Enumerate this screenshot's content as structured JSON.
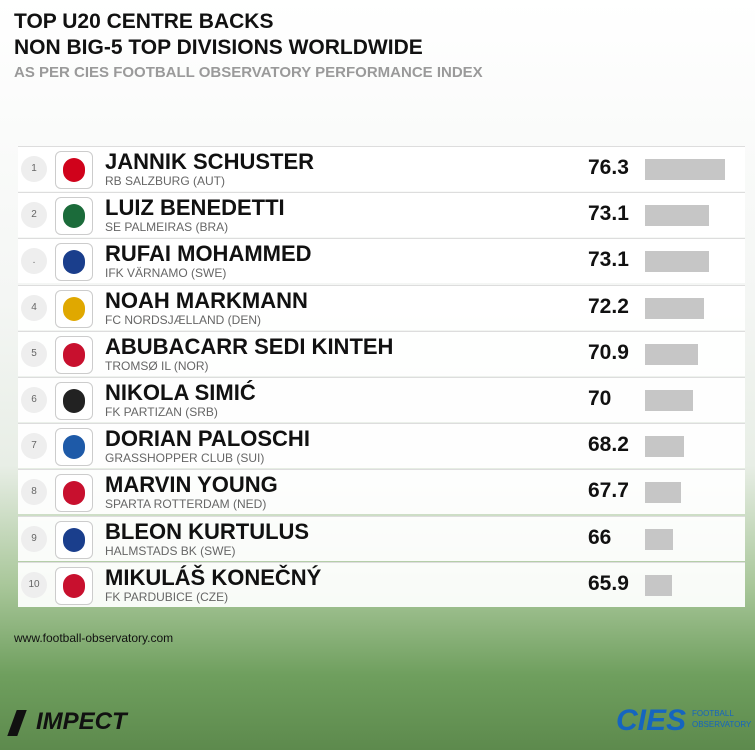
{
  "header": {
    "title_lines": [
      "TOP U20 CENTRE BACKS",
      "NON BIG-5 TOP DIVISIONS WORLDWIDE"
    ],
    "subtitle": "AS PER CIES FOOTBALL OBSERVATORY PERFORMANCE INDEX"
  },
  "rows": [
    {
      "rank": "1",
      "name": "JANNIK SCHUSTER",
      "club": "RB SALZBURG (AUT)",
      "value": 76.3
    },
    {
      "rank": "2",
      "name": "LUIZ BENEDETTI",
      "club": "SE PALMEIRAS (BRA)",
      "value": 73.1
    },
    {
      "rank": ".",
      "name": "RUFAI MOHAMMED",
      "club": "IFK VÄRNAMO (SWE)",
      "value": 73.1
    },
    {
      "rank": "4",
      "name": "NOAH MARKMANN",
      "club": "FC NORDSJÆLLAND (DEN)",
      "value": 72.2
    },
    {
      "rank": "5",
      "name": "ABUBACARR SEDI KINTEH",
      "club": "TROMSØ IL (NOR)",
      "value": 70.9
    },
    {
      "rank": "6",
      "name": "NIKOLA SIMIĆ",
      "club": "FK PARTIZAN (SRB)",
      "value": 70.0
    },
    {
      "rank": "7",
      "name": "DORIAN PALOSCHI",
      "club": "GRASSHOPPER CLUB (SUI)",
      "value": 68.2
    },
    {
      "rank": "8",
      "name": "MARVIN YOUNG",
      "club": "SPARTA ROTTERDAM (NED)",
      "value": 67.7
    },
    {
      "rank": "9",
      "name": "BLEON KURTULUS",
      "club": "HALMSTADS BK (SWE)",
      "value": 66.0
    },
    {
      "rank": "10",
      "name": "MIKULÁŠ KONEČNÝ",
      "club": "FK PARDUBICE (CZE)",
      "value": 65.9
    }
  ],
  "footer": {
    "website": "www.football-observatory.com",
    "partner": "IMPECT",
    "brand": "CIES",
    "brand_sub": [
      "FOOTBALL",
      "OBSERVATORY"
    ]
  }
}
